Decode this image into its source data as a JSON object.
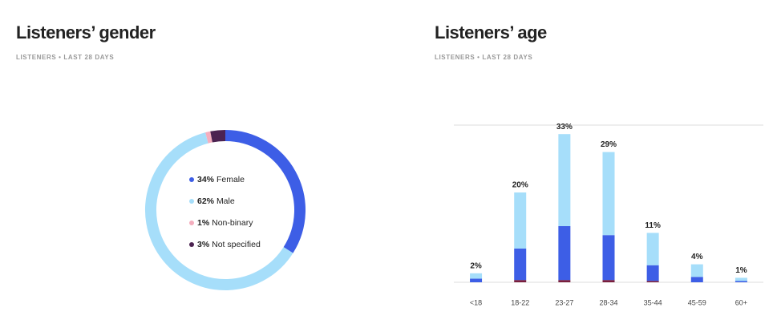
{
  "chart_data": [
    {
      "type": "donut",
      "title": "Listeners’ gender",
      "subtitle": "LISTENERS • LAST 28 DAYS",
      "categories": [
        "Female",
        "Male",
        "Non-binary",
        "Not specified"
      ],
      "values": [
        34,
        62,
        1,
        3
      ],
      "value_labels": [
        "34%",
        "62%",
        "1%",
        "3%"
      ],
      "colors": [
        "#3d5ee6",
        "#a6defa",
        "#f4aebe",
        "#4c2351"
      ]
    },
    {
      "type": "stacked_bar",
      "title": "Listeners’ age",
      "subtitle": "LISTENERS • LAST 28 DAYS",
      "categories": [
        "<18",
        "18-22",
        "23-27",
        "28-34",
        "35-44",
        "45-59",
        "60+"
      ],
      "series": [
        {
          "color": "#7a1f3d",
          "values": [
            0,
            0.5,
            0.5,
            0.5,
            0.3,
            0,
            0
          ]
        },
        {
          "color": "#3d5ee6",
          "values": [
            0.8,
            7,
            12,
            10,
            3.5,
            1.2,
            0.3
          ]
        },
        {
          "color": "#a6defa",
          "values": [
            1.2,
            12.5,
            20.5,
            18.5,
            7.2,
            2.8,
            0.7
          ]
        }
      ],
      "totals": [
        2,
        20,
        33,
        29,
        11,
        4,
        1
      ],
      "total_labels": [
        "2%",
        "20%",
        "33%",
        "29%",
        "11%",
        "4%",
        "1%"
      ],
      "ylim": [
        0,
        35
      ],
      "grid": true
    }
  ]
}
